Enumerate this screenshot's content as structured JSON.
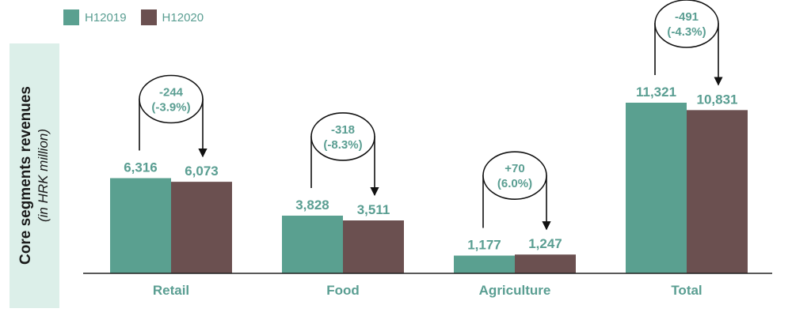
{
  "legend": [
    {
      "name": "H12019",
      "color": "#5aa090"
    },
    {
      "name": "H12020",
      "color": "#6b5050"
    }
  ],
  "yaxis": {
    "label": "Core segments revenues",
    "unit": "(in HRK million)"
  },
  "chart_data": {
    "type": "bar",
    "categories": [
      "Retail",
      "Food",
      "Agriculture",
      "Total"
    ],
    "series": [
      {
        "name": "H12019",
        "values": [
          6316,
          3828,
          1177,
          11321
        ],
        "labels": [
          "6,316",
          "3,828",
          "1,177",
          "11,321"
        ]
      },
      {
        "name": "H12020",
        "values": [
          6073,
          3511,
          1247,
          10831
        ],
        "labels": [
          "6,073",
          "3,511",
          "1,247",
          "10,831"
        ]
      }
    ],
    "changes": [
      {
        "abs": "-244",
        "pct": "(-3.9%)"
      },
      {
        "abs": "-318",
        "pct": "(-8.3%)"
      },
      {
        "abs": "+70",
        "pct": "(6.0%)"
      },
      {
        "abs": "-491",
        "pct": "(-4.3%)"
      }
    ],
    "ylabel": "Core segments revenues (in HRK million)",
    "ylim": [
      0,
      11321
    ],
    "grid": false,
    "legend_position": "top-left"
  }
}
